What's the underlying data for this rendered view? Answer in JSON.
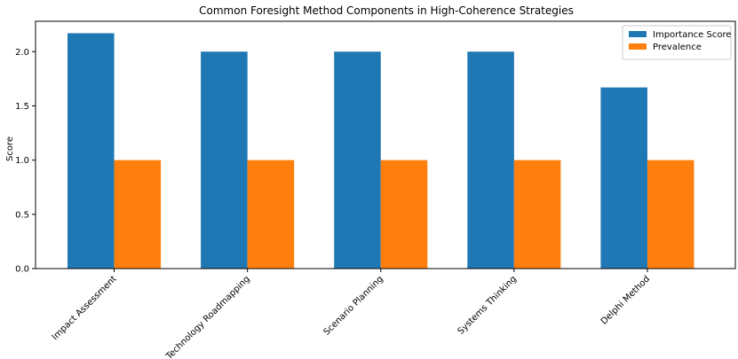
{
  "chart_data": {
    "type": "bar",
    "title": "Common Foresight Method Components in High-Coherence Strategies",
    "xlabel": "",
    "ylabel": "Score",
    "categories": [
      "Impact Assessment",
      "Technology Roadmapping",
      "Scenario Planning",
      "Systems Thinking",
      "Delphi Method"
    ],
    "series": [
      {
        "name": "Importance Score",
        "color": "#1f77b4",
        "values": [
          2.17,
          2.0,
          2.0,
          2.0,
          1.67
        ]
      },
      {
        "name": "Prevalence",
        "color": "#ff7f0e",
        "values": [
          1.0,
          1.0,
          1.0,
          1.0,
          1.0
        ]
      }
    ],
    "ylim": [
      0,
      2.28
    ],
    "yticks": [
      0.0,
      0.5,
      1.0,
      1.5,
      2.0
    ],
    "ytick_labels": [
      "0.0",
      "0.5",
      "1.0",
      "1.5",
      "2.0"
    ],
    "grid": false,
    "legend_position": "top-right"
  }
}
